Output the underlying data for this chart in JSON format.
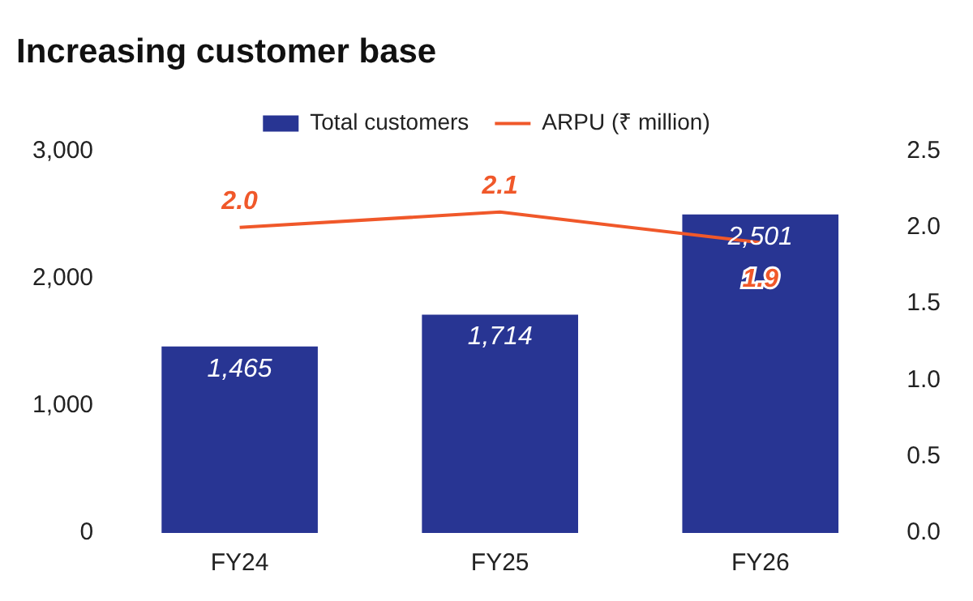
{
  "chart_data": {
    "type": "bar",
    "title": "Increasing customer base",
    "categories": [
      "FY24",
      "FY25",
      "FY26"
    ],
    "series": [
      {
        "name": "Total customers",
        "color": "#283593",
        "values": [
          1465,
          1714,
          2501
        ],
        "value_labels": [
          "1,465",
          "1,714",
          "2,501"
        ]
      },
      {
        "name": "ARPU (₹ million)",
        "type": "line",
        "axis": "y2",
        "color": "#f0582a",
        "values": [
          2.0,
          2.1,
          1.9
        ],
        "value_labels": [
          "2.0",
          "2.1",
          "1.9"
        ]
      }
    ],
    "ylim": [
      0,
      3000
    ],
    "yticks": [
      {
        "value": 0,
        "label": "0"
      },
      {
        "value": 1000,
        "label": "1,000"
      },
      {
        "value": 2000,
        "label": "2,000"
      },
      {
        "value": 3000,
        "label": "3,000"
      }
    ],
    "y2lim": [
      0,
      2.5
    ],
    "y2ticks": [
      {
        "value": 0,
        "label": "0.0"
      },
      {
        "value": 0.5,
        "label": "0.5"
      },
      {
        "value": 1,
        "label": "1.0"
      },
      {
        "value": 1.5,
        "label": "1.5"
      },
      {
        "value": 2,
        "label": "2.0"
      },
      {
        "value": 2.5,
        "label": "2.5"
      }
    ],
    "grid": false,
    "legend": "top",
    "marker": "none"
  }
}
